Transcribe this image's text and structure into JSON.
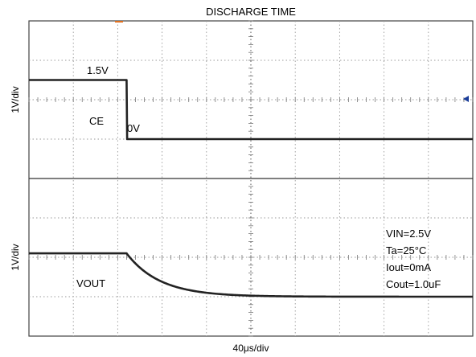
{
  "chart_data": {
    "type": "line",
    "title": "DISCHARGE TIME",
    "xlabel": "40μs/div",
    "x_divisions": 10,
    "x_range_us": [
      0,
      400
    ],
    "grid": true,
    "grid_style": "dotted",
    "trace_color": "#222222",
    "marker_color": "#1a3d9a",
    "channels": [
      {
        "name": "CE",
        "ylabel": "1V/div",
        "y_divisions": 4,
        "y_range_v": [
          0,
          4
        ],
        "label": "CE",
        "annotations": [
          {
            "text": "1.5V"
          },
          {
            "text": "0V"
          }
        ],
        "points": [
          {
            "t_us": 0,
            "v": 2.5
          },
          {
            "t_us": 88,
            "v": 2.5
          },
          {
            "t_us": 88.5,
            "v": 1.0
          },
          {
            "t_us": 400,
            "v": 1.0
          }
        ]
      },
      {
        "name": "VOUT",
        "ylabel": "1V/div",
        "y_divisions": 4,
        "y_range_v": [
          0,
          4
        ],
        "label": "VOUT",
        "start_level_v": 2.1,
        "final_level_v": 1.0,
        "step_time_us": 88,
        "tau_us": 30
      }
    ],
    "conditions": [
      "VIN=2.5V",
      "Ta=25°C",
      "Iout=0mA",
      "Cout=1.0uF"
    ]
  }
}
